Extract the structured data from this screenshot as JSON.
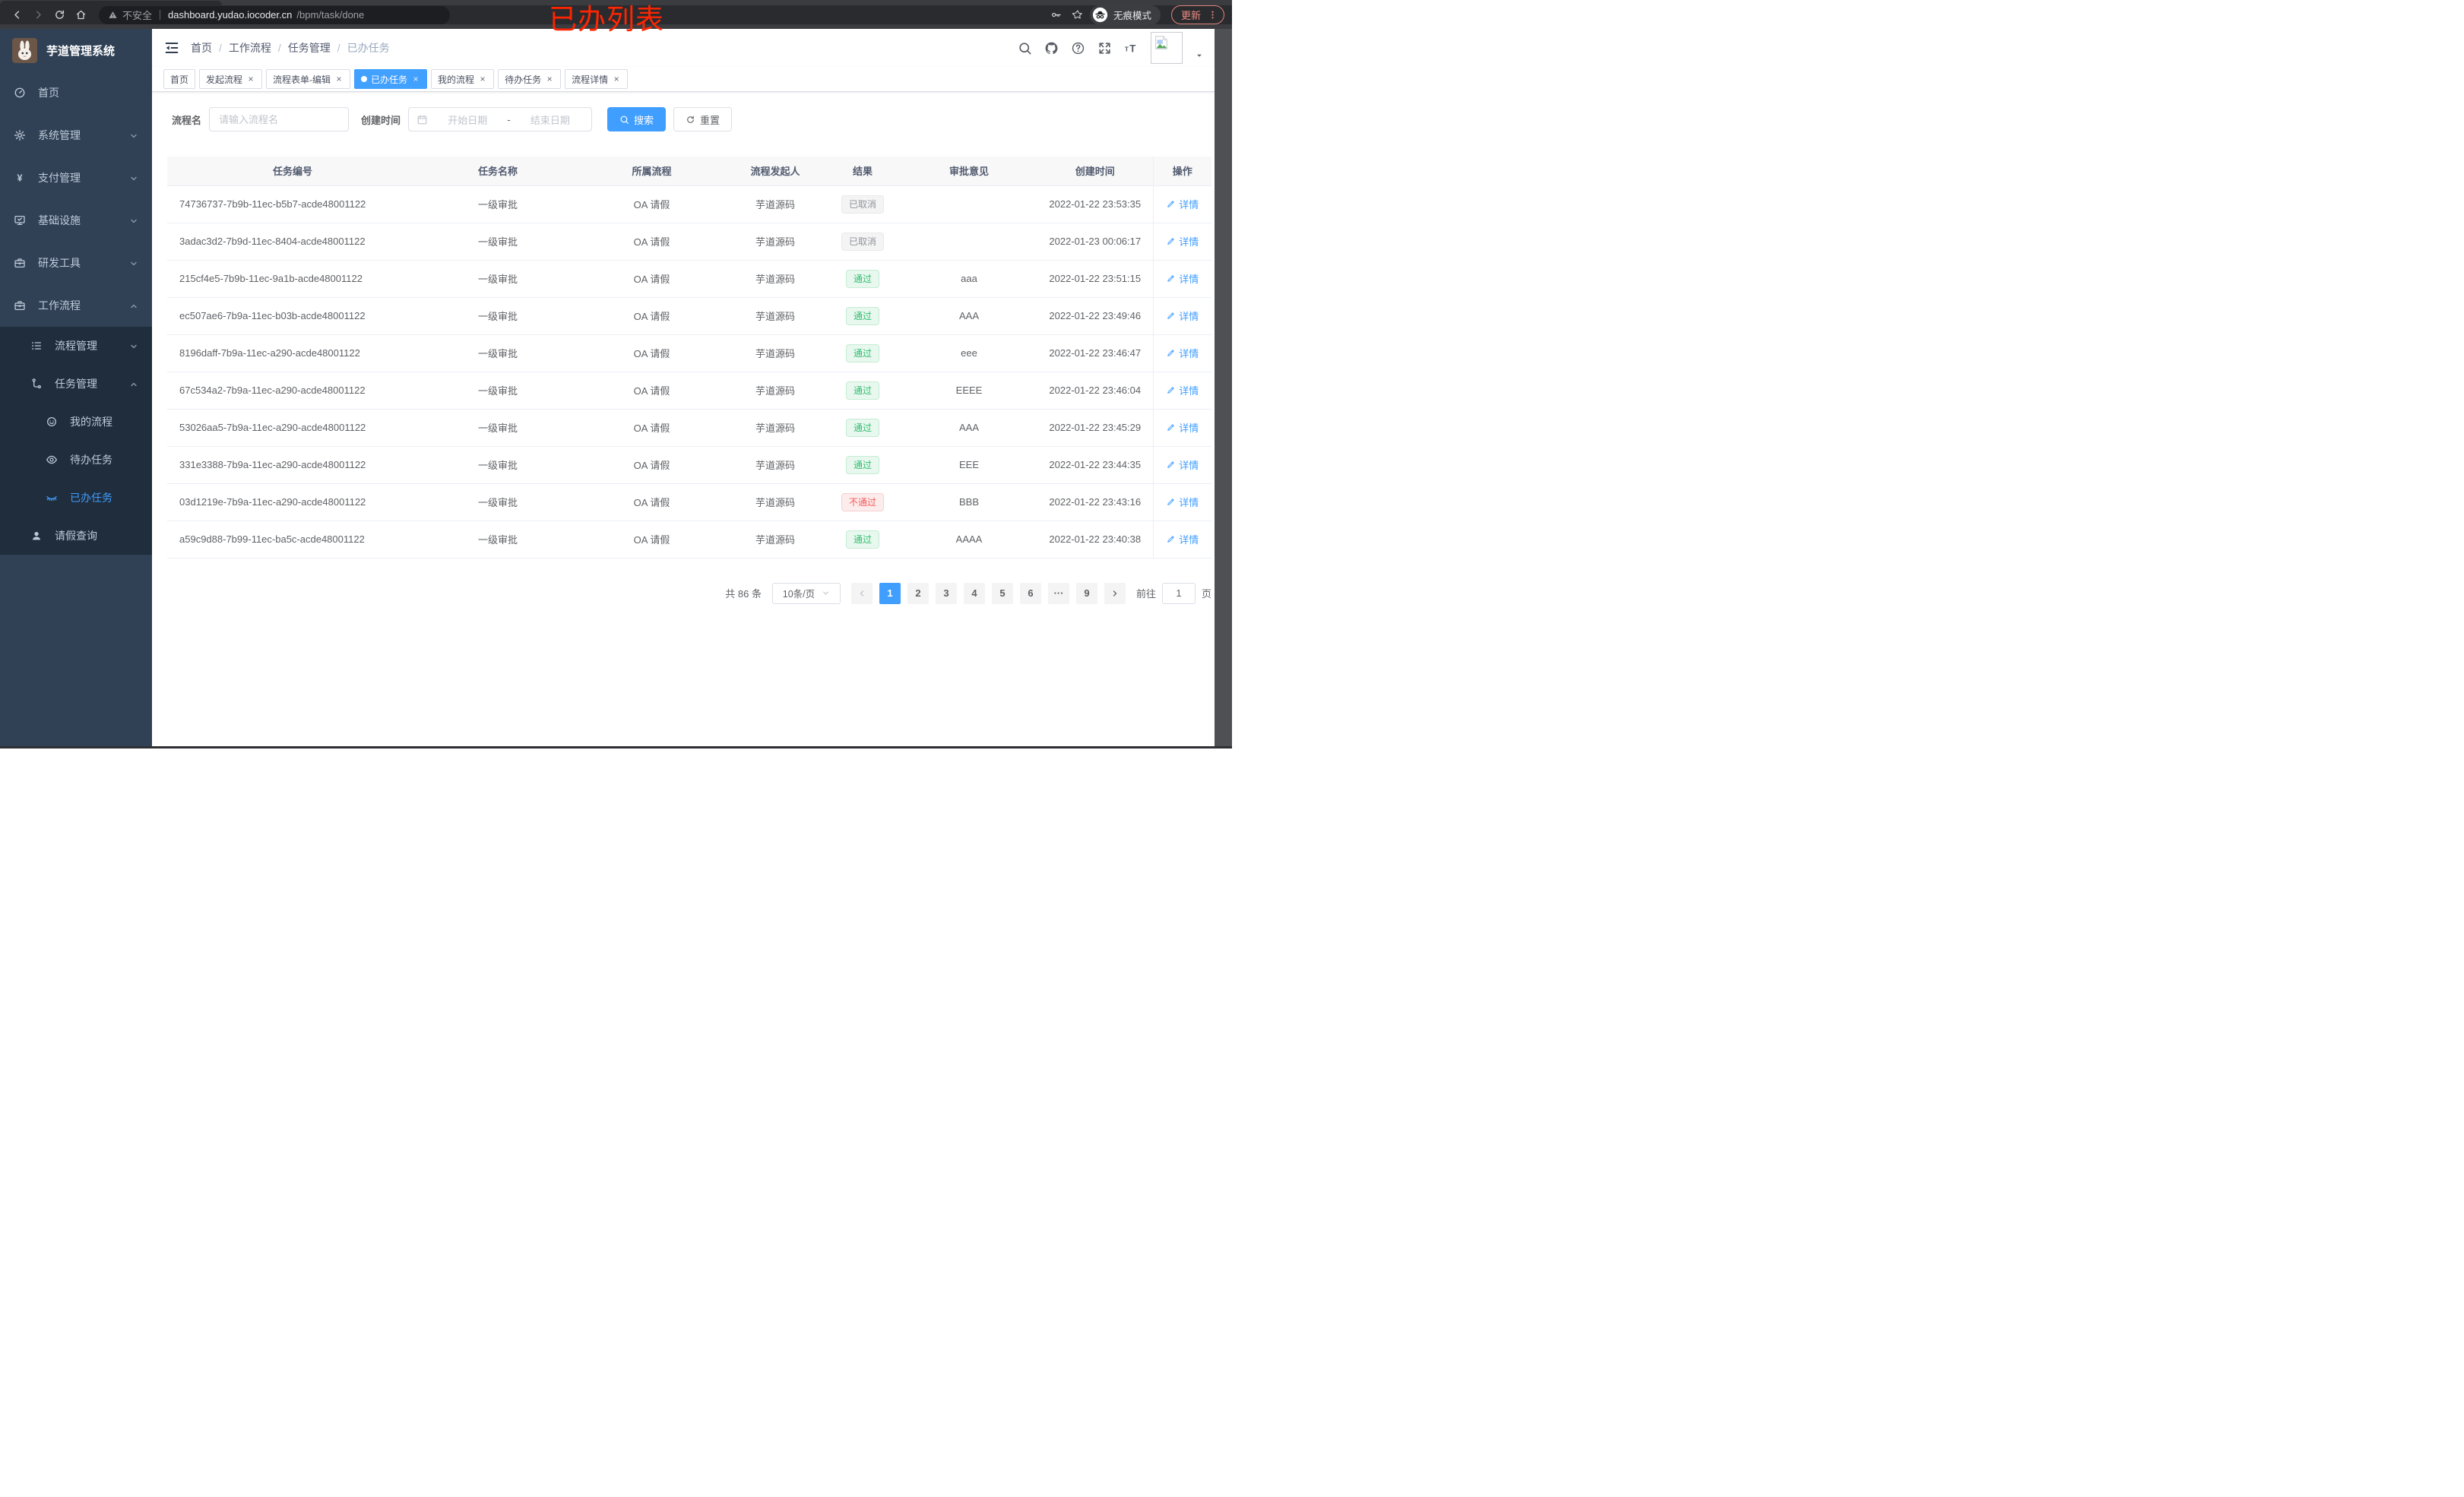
{
  "browser": {
    "security_label": "不安全",
    "url_host": "dashboard.yudao.iocoder.cn",
    "url_path": "/bpm/task/done",
    "incognito_label": "无痕模式",
    "update_label": "更新"
  },
  "annotation": {
    "text": "已办列表"
  },
  "sidebar": {
    "logo_title": "芋道管理系统",
    "items": [
      {
        "icon": "dashboard-icon",
        "label": "首页",
        "level": 0,
        "chevron": null,
        "active": false,
        "dark": false
      },
      {
        "icon": "gear-icon",
        "label": "系统管理",
        "level": 0,
        "chevron": "down",
        "active": false,
        "dark": false
      },
      {
        "icon": "yen-icon",
        "label": "支付管理",
        "level": 0,
        "chevron": "down",
        "active": false,
        "dark": false
      },
      {
        "icon": "monitor-icon",
        "label": "基础设施",
        "level": 0,
        "chevron": "down",
        "active": false,
        "dark": false
      },
      {
        "icon": "toolbox-icon",
        "label": "研发工具",
        "level": 0,
        "chevron": "down",
        "active": false,
        "dark": false
      },
      {
        "icon": "briefcase-icon",
        "label": "工作流程",
        "level": 0,
        "chevron": "up",
        "active": false,
        "dark": false
      },
      {
        "icon": "list-icon",
        "label": "流程管理",
        "level": 1,
        "chevron": "down",
        "active": false,
        "dark": true
      },
      {
        "icon": "flow-icon",
        "label": "任务管理",
        "level": 1,
        "chevron": "up",
        "active": false,
        "dark": true
      },
      {
        "icon": "robot-icon",
        "label": "我的流程",
        "level": 2,
        "chevron": null,
        "active": false,
        "dark": true
      },
      {
        "icon": "eye-icon",
        "label": "待办任务",
        "level": 2,
        "chevron": null,
        "active": false,
        "dark": true
      },
      {
        "icon": "eye-closed-icon",
        "label": "已办任务",
        "level": 2,
        "chevron": null,
        "active": true,
        "dark": true
      },
      {
        "icon": "user-icon",
        "label": "请假查询",
        "level": 1,
        "chevron": null,
        "active": false,
        "dark": true
      }
    ]
  },
  "header": {
    "breadcrumb": [
      "首页",
      "工作流程",
      "任务管理",
      "已办任务"
    ]
  },
  "tabs": [
    {
      "label": "首页",
      "active": false,
      "closable": false
    },
    {
      "label": "发起流程",
      "active": false,
      "closable": true
    },
    {
      "label": "流程表单-编辑",
      "active": false,
      "closable": true
    },
    {
      "label": "已办任务",
      "active": true,
      "closable": true
    },
    {
      "label": "我的流程",
      "active": false,
      "closable": true
    },
    {
      "label": "待办任务",
      "active": false,
      "closable": true
    },
    {
      "label": "流程详情",
      "active": false,
      "closable": true
    }
  ],
  "filters": {
    "name_label": "流程名",
    "name_placeholder": "请输入流程名",
    "date_label": "创建时间",
    "date_start_placeholder": "开始日期",
    "date_separator": "-",
    "date_end_placeholder": "结束日期",
    "search_label": "搜索",
    "reset_label": "重置"
  },
  "table": {
    "columns": [
      "任务编号",
      "任务名称",
      "所属流程",
      "流程发起人",
      "结果",
      "审批意见",
      "创建时间",
      "操作"
    ],
    "action_label": "详情",
    "rows": [
      {
        "id": "74736737-7b9b-11ec-b5b7-acde48001122",
        "name": "一级审批",
        "process": "OA 请假",
        "starter": "芋道源码",
        "result": "已取消",
        "result_type": "info",
        "comment": "",
        "created": "2022-01-22 23:53:35"
      },
      {
        "id": "3adac3d2-7b9d-11ec-8404-acde48001122",
        "name": "一级审批",
        "process": "OA 请假",
        "starter": "芋道源码",
        "result": "已取消",
        "result_type": "info",
        "comment": "",
        "created": "2022-01-23 00:06:17"
      },
      {
        "id": "215cf4e5-7b9b-11ec-9a1b-acde48001122",
        "name": "一级审批",
        "process": "OA 请假",
        "starter": "芋道源码",
        "result": "通过",
        "result_type": "success",
        "comment": "aaa",
        "created": "2022-01-22 23:51:15"
      },
      {
        "id": "ec507ae6-7b9a-11ec-b03b-acde48001122",
        "name": "一级审批",
        "process": "OA 请假",
        "starter": "芋道源码",
        "result": "通过",
        "result_type": "success",
        "comment": "AAA",
        "created": "2022-01-22 23:49:46"
      },
      {
        "id": "8196daff-7b9a-11ec-a290-acde48001122",
        "name": "一级审批",
        "process": "OA 请假",
        "starter": "芋道源码",
        "result": "通过",
        "result_type": "success",
        "comment": "eee",
        "created": "2022-01-22 23:46:47"
      },
      {
        "id": "67c534a2-7b9a-11ec-a290-acde48001122",
        "name": "一级审批",
        "process": "OA 请假",
        "starter": "芋道源码",
        "result": "通过",
        "result_type": "success",
        "comment": "EEEE",
        "created": "2022-01-22 23:46:04"
      },
      {
        "id": "53026aa5-7b9a-11ec-a290-acde48001122",
        "name": "一级审批",
        "process": "OA 请假",
        "starter": "芋道源码",
        "result": "通过",
        "result_type": "success",
        "comment": "AAA",
        "created": "2022-01-22 23:45:29"
      },
      {
        "id": "331e3388-7b9a-11ec-a290-acde48001122",
        "name": "一级审批",
        "process": "OA 请假",
        "starter": "芋道源码",
        "result": "通过",
        "result_type": "success",
        "comment": "EEE",
        "created": "2022-01-22 23:44:35"
      },
      {
        "id": "03d1219e-7b9a-11ec-a290-acde48001122",
        "name": "一级审批",
        "process": "OA 请假",
        "starter": "芋道源码",
        "result": "不通过",
        "result_type": "danger",
        "comment": "BBB",
        "created": "2022-01-22 23:43:16"
      },
      {
        "id": "a59c9d88-7b99-11ec-ba5c-acde48001122",
        "name": "一级审批",
        "process": "OA 请假",
        "starter": "芋道源码",
        "result": "通过",
        "result_type": "success",
        "comment": "AAAA",
        "created": "2022-01-22 23:40:38"
      }
    ]
  },
  "pagination": {
    "total_label": "共 86 条",
    "page_size_label": "10条/页",
    "pages": [
      "1",
      "2",
      "3",
      "4",
      "5",
      "6",
      "···",
      "9"
    ],
    "active_page": "1",
    "goto_label": "前往",
    "goto_value": "1",
    "goto_suffix": "页"
  },
  "colors": {
    "primary": "#409eff",
    "sidebar_bg": "#304156",
    "sidebar_sub_bg": "#1f2d3d",
    "success_text": "#2fbd70",
    "danger_text": "#f45a5a",
    "info_text": "#909399",
    "annotation_red": "#fe2500"
  }
}
